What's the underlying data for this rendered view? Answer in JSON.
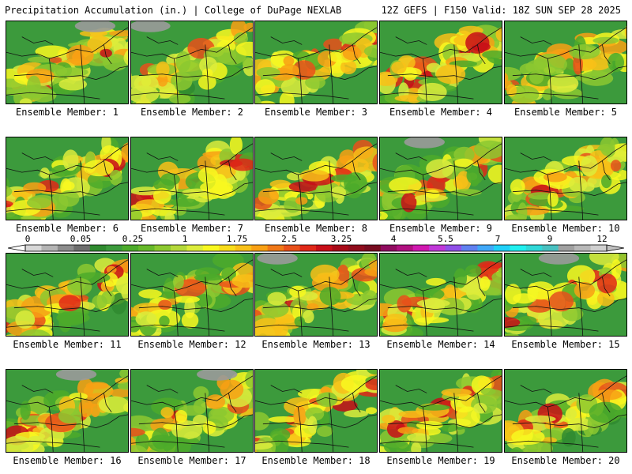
{
  "header": {
    "left_title": "Precipitation Accumulation (in.) | College of DuPage NEXLAB",
    "right_title": "12Z GEFS | F150 Valid: 18Z SUN SEP 28 2025"
  },
  "colorbar": {
    "tick_labels": [
      "0",
      "0.05",
      "0.25",
      "1",
      "1.75",
      "2.5",
      "3.25",
      "4",
      "5.5",
      "7",
      "9",
      "12"
    ],
    "colors": [
      "#d8d8d8",
      "#b4b4b4",
      "#8c8c8c",
      "#6e6e6e",
      "#2f8a2f",
      "#3c9a3c",
      "#4caa2a",
      "#66b82a",
      "#8cc830",
      "#b4d83a",
      "#dcec3c",
      "#f8f820",
      "#f8dc1a",
      "#f8c018",
      "#f8a014",
      "#f07818",
      "#e8501a",
      "#e02818",
      "#c80e18",
      "#a80a18",
      "#900c1c",
      "#780c20",
      "#900c60",
      "#b01080",
      "#d018b0",
      "#c038d8",
      "#9050e8",
      "#6080f0",
      "#40a8f8",
      "#20d0f8",
      "#20f0f0",
      "#30d8d8",
      "#48c0c0",
      "#a0a0a0",
      "#b8b8b8",
      "#d0d0d0"
    ]
  },
  "members": [
    {
      "label": "Ensemble Member: 1"
    },
    {
      "label": "Ensemble Member: 2"
    },
    {
      "label": "Ensemble Member: 3"
    },
    {
      "label": "Ensemble Member: 4"
    },
    {
      "label": "Ensemble Member: 5"
    },
    {
      "label": "Ensemble Member: 6"
    },
    {
      "label": "Ensemble Member: 7"
    },
    {
      "label": "Ensemble Member: 8"
    },
    {
      "label": "Ensemble Member: 9"
    },
    {
      "label": "Ensemble Member: 10"
    },
    {
      "label": "Ensemble Member: 11"
    },
    {
      "label": "Ensemble Member: 12"
    },
    {
      "label": "Ensemble Member: 13"
    },
    {
      "label": "Ensemble Member: 14"
    },
    {
      "label": "Ensemble Member: 15"
    },
    {
      "label": "Ensemble Member: 16"
    },
    {
      "label": "Ensemble Member: 17"
    },
    {
      "label": "Ensemble Member: 18"
    },
    {
      "label": "Ensemble Member: 19"
    },
    {
      "label": "Ensemble Member: 20"
    }
  ]
}
